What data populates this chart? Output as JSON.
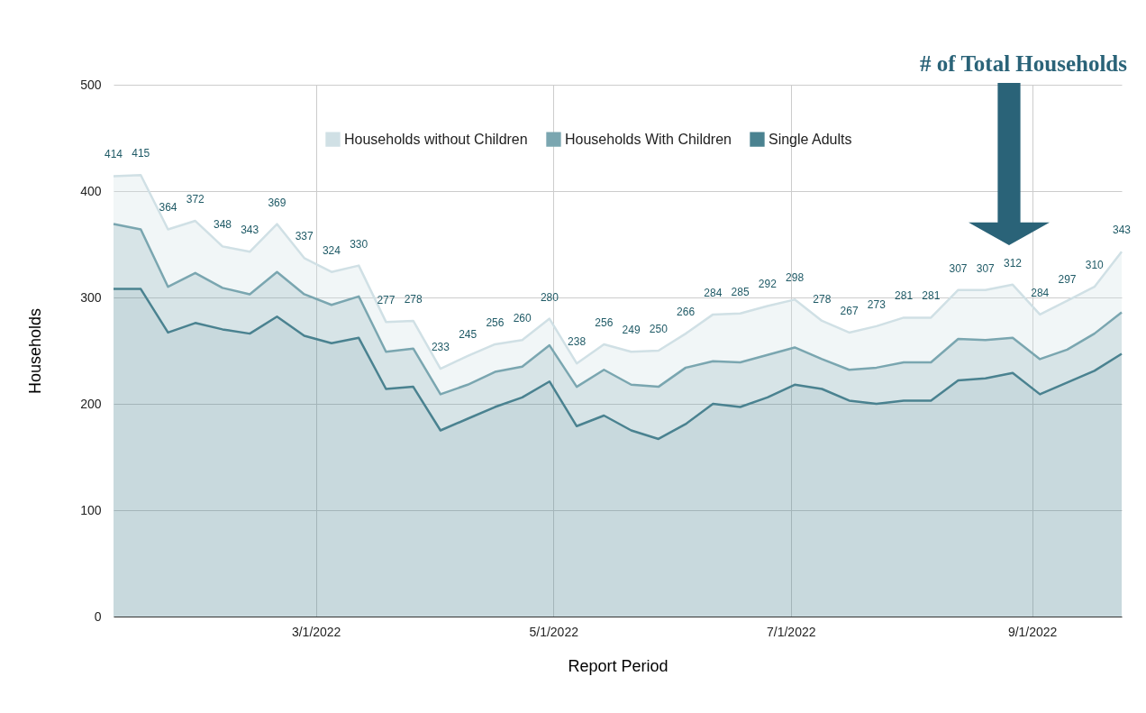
{
  "chart_data": {
    "type": "area",
    "stacked": true,
    "xlabel": "Report Period",
    "ylabel": "Households",
    "x": [
      "2022-01-08",
      "2022-01-15",
      "2022-01-22",
      "2022-01-29",
      "2022-02-05",
      "2022-02-12",
      "2022-02-19",
      "2022-02-26",
      "2022-03-05",
      "2022-03-12",
      "2022-03-19",
      "2022-03-26",
      "2022-04-02",
      "2022-04-09",
      "2022-04-16",
      "2022-04-23",
      "2022-04-30",
      "2022-05-07",
      "2022-05-14",
      "2022-05-21",
      "2022-05-28",
      "2022-06-04",
      "2022-06-11",
      "2022-06-18",
      "2022-06-25",
      "2022-07-02",
      "2022-07-09",
      "2022-07-16",
      "2022-07-23",
      "2022-07-30",
      "2022-08-06",
      "2022-08-13",
      "2022-08-20",
      "2022-08-27",
      "2022-09-03",
      "2022-09-10",
      "2022-09-17",
      "2022-09-24"
    ],
    "series": [
      {
        "name": "Single Adults",
        "color": "#4a8290",
        "values": [
          308,
          308,
          267,
          276,
          270,
          266,
          282,
          264,
          257,
          262,
          214,
          216,
          175,
          186,
          197,
          206,
          221,
          179,
          189,
          175,
          167,
          181,
          200,
          197,
          206,
          218,
          214,
          203,
          200,
          203,
          203,
          222,
          224,
          229,
          209,
          220,
          231,
          247
        ]
      },
      {
        "name": "Households With Children",
        "color": "#7aa6b0",
        "values": [
          61,
          56,
          43,
          47,
          39,
          37,
          42,
          39,
          36,
          39,
          35,
          36,
          34,
          32,
          33,
          29,
          34,
          37,
          43,
          43,
          49,
          53,
          40,
          42,
          40,
          35,
          28,
          29,
          34,
          36,
          36,
          39,
          36,
          33,
          33,
          31,
          35,
          39
        ]
      },
      {
        "name": "Households without Children",
        "color": "#d0e0e5",
        "values": [
          45,
          51,
          54,
          49,
          39,
          40,
          45,
          34,
          31,
          29,
          28,
          26,
          24,
          27,
          26,
          25,
          25,
          22,
          24,
          31,
          34,
          32,
          44,
          46,
          46,
          45,
          36,
          35,
          39,
          42,
          42,
          46,
          47,
          50,
          42,
          46,
          44,
          57
        ]
      }
    ],
    "totals": [
      "414",
      "415",
      "364",
      "372",
      "348",
      "343",
      "369",
      "337",
      "324",
      "330",
      "277",
      "278",
      "233",
      "245",
      "256",
      "260",
      "280",
      "238",
      "256",
      "249",
      "250",
      "266",
      "284",
      "285",
      "292",
      "298",
      "278",
      "267",
      "273",
      "281",
      "281",
      "307",
      "307",
      "312",
      "284",
      "297",
      "310",
      "343"
    ],
    "xlim": [
      "2022-01-08",
      "2022-09-24"
    ],
    "xticks": [
      {
        "value": "2022-03-01",
        "label": "3/1/2022"
      },
      {
        "value": "2022-05-01",
        "label": "5/1/2022"
      },
      {
        "value": "2022-07-01",
        "label": "7/1/2022"
      },
      {
        "value": "2022-09-01",
        "label": "9/1/2022"
      }
    ],
    "ylim": [
      0,
      500
    ],
    "yticks": [
      0,
      100,
      200,
      300,
      400,
      500
    ],
    "grid": true,
    "legend": "top",
    "annotations": [
      "# of Total Households"
    ]
  }
}
